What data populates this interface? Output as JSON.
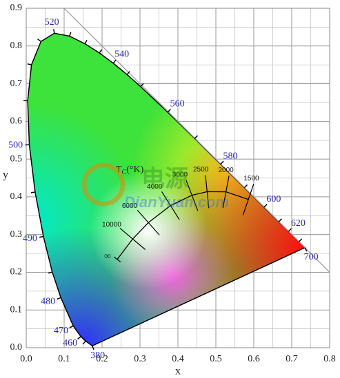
{
  "chart_data": {
    "type": "chromaticity",
    "xlabel": "x",
    "ylabel": "y",
    "xlim": [
      0,
      0.8
    ],
    "ylim": [
      0,
      0.9
    ],
    "xticks": [
      {
        "value": 0,
        "label": "0.0"
      },
      0.1,
      0.2,
      0.3,
      0.4,
      0.5,
      0.6,
      0.7,
      0.8
    ],
    "yticks": [
      {
        "value": 0,
        "label": "0.0"
      },
      0.1,
      0.2,
      0.3,
      0.4,
      0.5,
      0.6,
      0.7,
      0.8,
      0.9
    ],
    "grid": true,
    "locus": {
      "x": [
        0.1741,
        0.1566,
        0.144,
        0.1241,
        0.0913,
        0.0687,
        0.0454,
        0.0235,
        0.0082,
        0.0039,
        0.0139,
        0.0389,
        0.0743,
        0.1142,
        0.1547,
        0.1929,
        0.2296,
        0.2658,
        0.3016,
        0.3731,
        0.4441,
        0.5125,
        0.5752,
        0.627,
        0.6658,
        0.6915,
        0.719,
        0.7347
      ],
      "y": [
        0.005,
        0.0177,
        0.0297,
        0.0578,
        0.1327,
        0.2007,
        0.295,
        0.4127,
        0.5384,
        0.6548,
        0.7502,
        0.812,
        0.8338,
        0.8262,
        0.8059,
        0.7816,
        0.7543,
        0.7243,
        0.6923,
        0.6245,
        0.5547,
        0.4866,
        0.4242,
        0.3725,
        0.334,
        0.3083,
        0.2809,
        0.2653
      ],
      "labels": [
        "380",
        null,
        "460",
        "470",
        "480",
        null,
        "490",
        null,
        "500",
        null,
        null,
        null,
        "520",
        null,
        null,
        null,
        "540",
        null,
        null,
        "560",
        null,
        "580",
        null,
        "600",
        null,
        "620",
        null,
        "700"
      ]
    },
    "planck_title": [
      "T",
      "C",
      "(°K)"
    ],
    "planck": {
      "x": [
        0.5857,
        0.5267,
        0.477,
        0.4369,
        0.3805,
        0.3221,
        0.2807,
        0.2399
      ],
      "y": [
        0.3931,
        0.4133,
        0.4137,
        0.4041,
        0.3768,
        0.3318,
        0.2884,
        0.2342
      ],
      "labels": [
        "1500",
        "2000",
        "2500",
        "3000",
        "4000",
        "6000",
        "10000",
        "∞"
      ]
    },
    "watermark": [
      "电源",
      "DianYuan.com"
    ]
  }
}
